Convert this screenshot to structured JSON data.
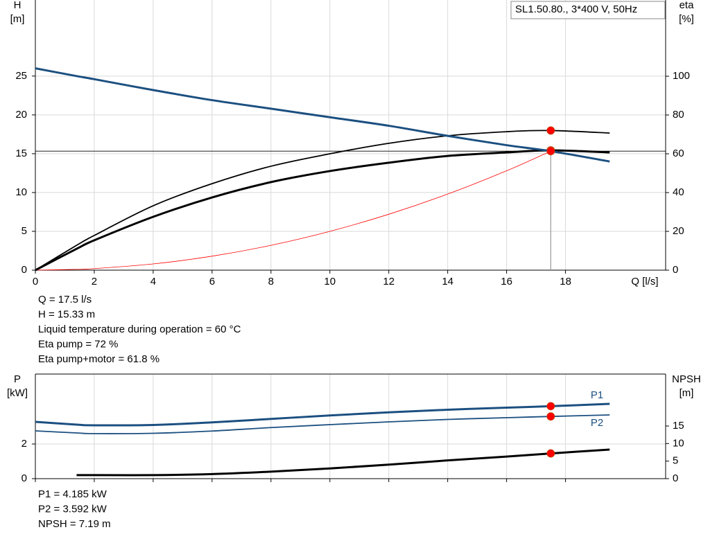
{
  "chart_data": [
    {
      "type": "line",
      "legend_title": "SL1.50.80., 3*400 V, 50Hz",
      "y_label": [
        "H",
        "[m]"
      ],
      "y2_label": [
        "eta",
        "[%]"
      ],
      "x_label": "Q [l/s]",
      "x": [
        0,
        1.4,
        2,
        4,
        6,
        8,
        10,
        12,
        14,
        16,
        17.5,
        19.5
      ],
      "xlim": [
        0,
        21.4
      ],
      "xticks": [
        0,
        2,
        4,
        6,
        8,
        10,
        12,
        14,
        16,
        18
      ],
      "ylim": [
        0,
        34.8
      ],
      "yticks": [
        0,
        5,
        10,
        15,
        20,
        25
      ],
      "y2lim": [
        0,
        139.3
      ],
      "y2ticks": [
        0,
        20,
        40,
        60,
        80,
        100
      ],
      "grid": true,
      "operating_point": {
        "x": 17.5,
        "y": 15.33
      },
      "series": [
        {
          "color": "#ff0000",
          "width": 0.8,
          "marker": false,
          "values": [
            0,
            0.1,
            0.2,
            0.8,
            1.8,
            3.2,
            5.0,
            7.2,
            9.8,
            12.8,
            15.33,
            null
          ]
        },
        {
          "color": "#000000",
          "width": 1.8,
          "axis": "y2",
          "marker": true,
          "values": [
            0,
            12.8,
            17.9,
            33.2,
            44.6,
            53.6,
            60.0,
            65.4,
            69.3,
            71.4,
            72,
            70.7
          ]
        },
        {
          "color": "#000000",
          "width": 3,
          "axis": "y2",
          "marker": true,
          "values": [
            0,
            11.0,
            15.4,
            27.5,
            37.5,
            45.4,
            51.1,
            55.4,
            58.9,
            60.7,
            61.8,
            60.7
          ]
        },
        {
          "color": "#1b4f80",
          "width": 3,
          "marker": true,
          "values": [
            26,
            25.0,
            24.6,
            23.2,
            21.9,
            20.8,
            19.7,
            18.6,
            17.3,
            16.1,
            15.33,
            14.0
          ]
        }
      ],
      "annotations": [
        "Q = 17.5 l/s",
        "H = 15.33 m",
        "Liquid temperature during operation = 60 °C",
        "Eta pump = 72 %",
        "Eta pump+motor = 61.8 %"
      ]
    },
    {
      "type": "line",
      "y_label": [
        "P",
        "[kW]"
      ],
      "y2_label": [
        "NPSH",
        "[m]"
      ],
      "x": [
        0,
        1.4,
        2,
        4,
        6,
        8,
        10,
        12,
        14,
        16,
        17.5,
        19.5
      ],
      "xlim": [
        0,
        21.4
      ],
      "xticks": [
        0,
        2,
        4,
        6,
        8,
        10,
        12,
        14,
        16,
        18
      ],
      "ylim": [
        0,
        6.04
      ],
      "yticks": [
        0,
        2
      ],
      "y2lim": [
        0,
        29.8
      ],
      "y2ticks": [
        0,
        5,
        10,
        15
      ],
      "grid": true,
      "operating_point": {
        "x": 17.5
      },
      "series": [
        {
          "name": "P1",
          "color": "#1b4f80",
          "width": 3,
          "marker": true,
          "values": [
            3.28,
            3.12,
            3.08,
            3.1,
            3.25,
            3.45,
            3.65,
            3.83,
            3.98,
            4.1,
            4.185,
            4.32
          ]
        },
        {
          "name": "P2",
          "color": "#1b4f80",
          "width": 1.8,
          "marker": true,
          "values": [
            2.76,
            2.64,
            2.6,
            2.62,
            2.75,
            2.95,
            3.12,
            3.28,
            3.42,
            3.52,
            3.592,
            3.68
          ]
        },
        {
          "color": "#000000",
          "width": 3,
          "axis": "y2",
          "marker": true,
          "values": [
            null,
            1.0,
            1.0,
            1.0,
            1.3,
            2.0,
            2.9,
            4.0,
            5.2,
            6.3,
            7.19,
            8.3
          ]
        }
      ],
      "annotations": [
        "P1 = 4.185 kW",
        "P2 = 3.592 kW",
        "NPSH = 7.19 m"
      ]
    }
  ]
}
